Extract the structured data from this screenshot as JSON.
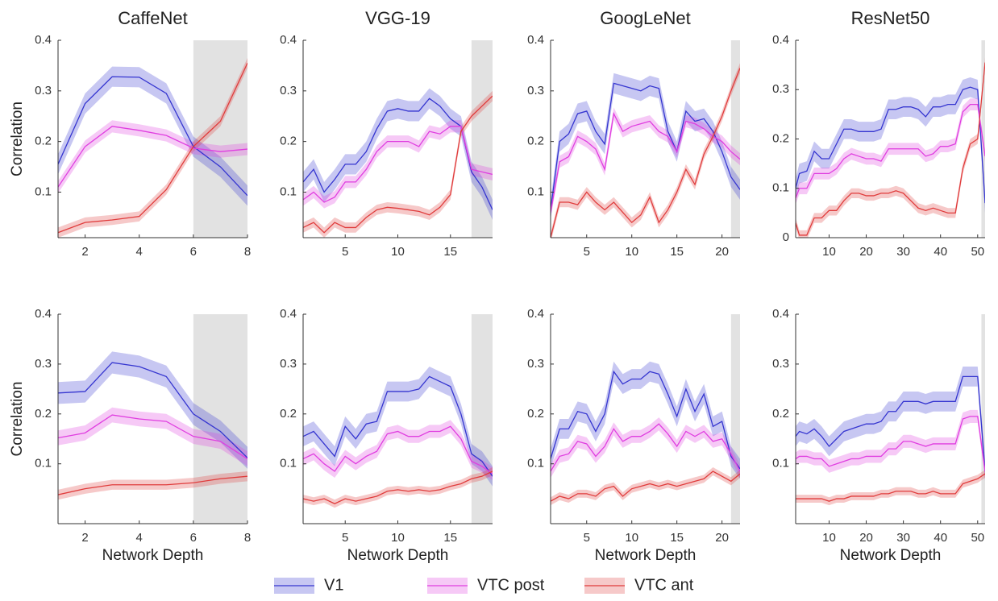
{
  "chart_data": [
    {
      "type": "line",
      "title": "CaffeNet",
      "ylabel": "Correlation",
      "x": [
        1,
        2,
        3,
        4,
        5,
        6,
        7,
        8
      ],
      "xlim": [
        1,
        8
      ],
      "xticks": [
        2,
        4,
        6,
        8
      ],
      "ylim": [
        0.01,
        0.4
      ],
      "yticks": [
        0.1,
        0.2,
        0.3,
        0.4
      ],
      "shade": [
        6,
        8
      ],
      "series": [
        {
          "name": "V1",
          "color": "#3535d0",
          "error": 0.02,
          "values": [
            0.155,
            0.275,
            0.328,
            0.327,
            0.295,
            0.19,
            0.15,
            0.093
          ]
        },
        {
          "name": "VTC post",
          "color": "#e03ee0",
          "error": 0.012,
          "values": [
            0.11,
            0.19,
            0.23,
            0.222,
            0.212,
            0.187,
            0.18,
            0.185
          ]
        },
        {
          "name": "VTC ant",
          "color": "#e03c3c",
          "error": 0.01,
          "values": [
            0.02,
            0.04,
            0.045,
            0.052,
            0.105,
            0.19,
            0.24,
            0.355
          ]
        }
      ]
    },
    {
      "type": "line",
      "title": "VGG-19",
      "x": [
        1,
        2,
        3,
        4,
        5,
        6,
        7,
        8,
        9,
        10,
        11,
        12,
        13,
        14,
        15,
        16,
        17,
        18,
        19
      ],
      "xlim": [
        1,
        19
      ],
      "xticks": [
        5,
        10,
        15
      ],
      "ylim": [
        0.01,
        0.4
      ],
      "yticks": [
        0.1,
        0.2,
        0.3,
        0.4
      ],
      "shade": [
        17,
        19
      ],
      "series": [
        {
          "color": "#3535d0",
          "error": 0.02,
          "values": [
            0.12,
            0.145,
            0.1,
            0.125,
            0.155,
            0.155,
            0.18,
            0.225,
            0.26,
            0.265,
            0.26,
            0.26,
            0.285,
            0.27,
            0.245,
            0.23,
            0.14,
            0.11,
            0.065
          ]
        },
        {
          "color": "#e03ee0",
          "error": 0.012,
          "values": [
            0.085,
            0.1,
            0.08,
            0.09,
            0.12,
            0.12,
            0.145,
            0.18,
            0.2,
            0.2,
            0.2,
            0.19,
            0.22,
            0.215,
            0.23,
            0.23,
            0.145,
            0.14,
            0.135
          ]
        },
        {
          "color": "#e03c3c",
          "error": 0.01,
          "values": [
            0.03,
            0.04,
            0.02,
            0.04,
            0.03,
            0.03,
            0.05,
            0.065,
            0.07,
            0.068,
            0.065,
            0.062,
            0.055,
            0.07,
            0.095,
            0.22,
            0.25,
            0.27,
            0.29
          ]
        }
      ]
    },
    {
      "type": "line",
      "title": "GoogLeNet",
      "x": [
        1,
        2,
        3,
        4,
        5,
        6,
        7,
        8,
        9,
        10,
        11,
        12,
        13,
        14,
        15,
        16,
        17,
        18,
        19,
        20,
        21,
        22
      ],
      "xlim": [
        1,
        22
      ],
      "xticks": [
        5,
        10,
        15,
        20
      ],
      "ylim": [
        0.01,
        0.4
      ],
      "yticks": [
        0.1,
        0.2,
        0.3,
        0.4
      ],
      "shade": [
        21,
        22
      ],
      "series": [
        {
          "color": "#3535d0",
          "error": 0.02,
          "values": [
            0.065,
            0.2,
            0.215,
            0.255,
            0.26,
            0.22,
            0.195,
            0.315,
            0.31,
            0.305,
            0.3,
            0.31,
            0.305,
            0.22,
            0.18,
            0.26,
            0.24,
            0.245,
            0.22,
            0.18,
            0.13,
            0.105
          ]
        },
        {
          "color": "#e03ee0",
          "error": 0.012,
          "values": [
            0.06,
            0.16,
            0.17,
            0.21,
            0.2,
            0.185,
            0.145,
            0.255,
            0.22,
            0.23,
            0.235,
            0.24,
            0.22,
            0.21,
            0.18,
            0.24,
            0.235,
            0.225,
            0.21,
            0.2,
            0.18,
            0.165
          ]
        },
        {
          "color": "#e03c3c",
          "error": 0.01,
          "values": [
            0.01,
            0.08,
            0.08,
            0.075,
            0.1,
            0.08,
            0.065,
            0.08,
            0.06,
            0.04,
            0.055,
            0.09,
            0.04,
            0.065,
            0.1,
            0.145,
            0.115,
            0.175,
            0.21,
            0.25,
            0.3,
            0.345
          ]
        }
      ]
    },
    {
      "type": "line",
      "title": "ResNet50",
      "x": [
        1,
        2,
        4,
        6,
        8,
        10,
        12,
        14,
        16,
        18,
        20,
        22,
        24,
        26,
        28,
        30,
        32,
        34,
        36,
        38,
        40,
        42,
        44,
        46,
        48,
        50,
        52
      ],
      "xlim": [
        1,
        52
      ],
      "xticks": [
        10,
        20,
        30,
        40,
        50
      ],
      "ylim": [
        0,
        0.4
      ],
      "yticks": [
        0,
        0.1,
        0.2,
        0.3,
        0.4
      ],
      "shade": [
        51,
        52
      ],
      "series": [
        {
          "color": "#3535d0",
          "error": 0.02,
          "values": [
            0.1,
            0.13,
            0.135,
            0.175,
            0.16,
            0.16,
            0.19,
            0.22,
            0.22,
            0.215,
            0.215,
            0.215,
            0.22,
            0.26,
            0.26,
            0.265,
            0.265,
            0.26,
            0.245,
            0.265,
            0.265,
            0.27,
            0.27,
            0.3,
            0.305,
            0.3,
            0.07
          ]
        },
        {
          "color": "#e03ee0",
          "error": 0.012,
          "values": [
            0.08,
            0.1,
            0.1,
            0.13,
            0.13,
            0.13,
            0.14,
            0.16,
            0.17,
            0.165,
            0.16,
            0.16,
            0.155,
            0.18,
            0.18,
            0.18,
            0.18,
            0.18,
            0.165,
            0.17,
            0.185,
            0.185,
            0.19,
            0.255,
            0.27,
            0.27,
            0.165
          ]
        },
        {
          "color": "#e03c3c",
          "error": 0.01,
          "values": [
            0.03,
            0.005,
            0.005,
            0.04,
            0.04,
            0.055,
            0.055,
            0.075,
            0.09,
            0.09,
            0.085,
            0.085,
            0.09,
            0.09,
            0.095,
            0.09,
            0.075,
            0.06,
            0.055,
            0.06,
            0.055,
            0.05,
            0.05,
            0.14,
            0.19,
            0.2,
            0.355
          ]
        }
      ]
    },
    {
      "type": "line",
      "ylabel": "Correlation",
      "xlabel": "Network Depth",
      "x": [
        1,
        2,
        3,
        4,
        5,
        6,
        7,
        8
      ],
      "xlim": [
        1,
        8
      ],
      "xticks": [
        2,
        4,
        6,
        8
      ],
      "ylim": [
        -0.02,
        0.4
      ],
      "yticks": [
        0.1,
        0.2,
        0.3,
        0.4
      ],
      "shade": [
        6,
        8
      ],
      "series": [
        {
          "color": "#3535d0",
          "error": 0.022,
          "values": [
            0.242,
            0.245,
            0.303,
            0.295,
            0.275,
            0.2,
            0.165,
            0.112
          ]
        },
        {
          "color": "#e03ee0",
          "error": 0.015,
          "values": [
            0.152,
            0.162,
            0.198,
            0.19,
            0.185,
            0.155,
            0.145,
            0.11
          ]
        },
        {
          "color": "#e03c3c",
          "error": 0.01,
          "values": [
            0.038,
            0.05,
            0.058,
            0.058,
            0.058,
            0.062,
            0.07,
            0.075
          ]
        }
      ]
    },
    {
      "type": "line",
      "xlabel": "Network Depth",
      "x": [
        1,
        2,
        3,
        4,
        5,
        6,
        7,
        8,
        9,
        10,
        11,
        12,
        13,
        14,
        15,
        16,
        17,
        18,
        19
      ],
      "xlim": [
        1,
        19
      ],
      "xticks": [
        5,
        10,
        15
      ],
      "ylim": [
        -0.02,
        0.4
      ],
      "yticks": [
        0.1,
        0.2,
        0.3,
        0.4
      ],
      "shade": [
        17,
        19
      ],
      "series": [
        {
          "color": "#3535d0",
          "error": 0.02,
          "values": [
            0.155,
            0.165,
            0.14,
            0.115,
            0.175,
            0.15,
            0.18,
            0.185,
            0.245,
            0.245,
            0.245,
            0.25,
            0.275,
            0.265,
            0.255,
            0.2,
            0.12,
            0.105,
            0.075
          ]
        },
        {
          "color": "#e03ee0",
          "error": 0.013,
          "values": [
            0.11,
            0.12,
            0.1,
            0.085,
            0.115,
            0.1,
            0.115,
            0.125,
            0.16,
            0.165,
            0.155,
            0.155,
            0.165,
            0.165,
            0.175,
            0.15,
            0.105,
            0.095,
            0.08
          ]
        },
        {
          "color": "#e03c3c",
          "error": 0.008,
          "values": [
            0.03,
            0.025,
            0.03,
            0.02,
            0.03,
            0.025,
            0.03,
            0.035,
            0.045,
            0.048,
            0.045,
            0.048,
            0.045,
            0.048,
            0.055,
            0.06,
            0.07,
            0.075,
            0.085
          ]
        }
      ]
    },
    {
      "type": "line",
      "xlabel": "Network Depth",
      "x": [
        1,
        2,
        3,
        4,
        5,
        6,
        7,
        8,
        9,
        10,
        11,
        12,
        13,
        14,
        15,
        16,
        17,
        18,
        19,
        20,
        21,
        22
      ],
      "xlim": [
        1,
        22
      ],
      "xticks": [
        5,
        10,
        15,
        20
      ],
      "ylim": [
        -0.02,
        0.4
      ],
      "yticks": [
        0.1,
        0.2,
        0.3,
        0.4
      ],
      "shade": [
        21,
        22
      ],
      "series": [
        {
          "color": "#3535d0",
          "error": 0.02,
          "values": [
            0.11,
            0.17,
            0.17,
            0.205,
            0.2,
            0.165,
            0.2,
            0.285,
            0.26,
            0.27,
            0.27,
            0.285,
            0.28,
            0.24,
            0.195,
            0.25,
            0.205,
            0.24,
            0.175,
            0.185,
            0.115,
            0.09
          ]
        },
        {
          "color": "#e03ee0",
          "error": 0.013,
          "values": [
            0.085,
            0.115,
            0.12,
            0.145,
            0.14,
            0.115,
            0.135,
            0.17,
            0.145,
            0.155,
            0.155,
            0.165,
            0.18,
            0.16,
            0.135,
            0.165,
            0.155,
            0.165,
            0.145,
            0.15,
            0.12,
            0.085
          ]
        },
        {
          "color": "#e03c3c",
          "error": 0.008,
          "values": [
            0.025,
            0.035,
            0.03,
            0.04,
            0.04,
            0.035,
            0.05,
            0.055,
            0.035,
            0.05,
            0.055,
            0.06,
            0.055,
            0.06,
            0.055,
            0.06,
            0.065,
            0.07,
            0.085,
            0.075,
            0.065,
            0.08
          ]
        }
      ]
    },
    {
      "type": "line",
      "xlabel": "Network Depth",
      "x": [
        1,
        2,
        4,
        6,
        8,
        10,
        12,
        14,
        16,
        18,
        20,
        22,
        24,
        26,
        28,
        30,
        32,
        34,
        36,
        38,
        40,
        42,
        44,
        46,
        48,
        50,
        52
      ],
      "xlim": [
        1,
        52
      ],
      "xticks": [
        10,
        20,
        30,
        40,
        50
      ],
      "ylim": [
        -0.02,
        0.4
      ],
      "yticks": [
        0.1,
        0.2,
        0.3,
        0.4
      ],
      "shade": [
        51,
        52
      ],
      "series": [
        {
          "color": "#3535d0",
          "error": 0.02,
          "values": [
            0.155,
            0.165,
            0.16,
            0.17,
            0.155,
            0.135,
            0.15,
            0.165,
            0.17,
            0.175,
            0.18,
            0.18,
            0.185,
            0.205,
            0.205,
            0.225,
            0.225,
            0.225,
            0.22,
            0.225,
            0.225,
            0.225,
            0.225,
            0.275,
            0.275,
            0.275,
            0.085
          ]
        },
        {
          "color": "#e03ee0",
          "error": 0.013,
          "values": [
            0.11,
            0.115,
            0.115,
            0.11,
            0.11,
            0.095,
            0.1,
            0.105,
            0.11,
            0.11,
            0.115,
            0.115,
            0.115,
            0.13,
            0.13,
            0.145,
            0.145,
            0.14,
            0.135,
            0.14,
            0.14,
            0.14,
            0.14,
            0.19,
            0.195,
            0.195,
            0.085
          ]
        },
        {
          "color": "#e03c3c",
          "error": 0.008,
          "values": [
            0.03,
            0.03,
            0.03,
            0.03,
            0.03,
            0.025,
            0.03,
            0.03,
            0.035,
            0.035,
            0.035,
            0.035,
            0.04,
            0.04,
            0.045,
            0.045,
            0.045,
            0.04,
            0.04,
            0.045,
            0.04,
            0.04,
            0.04,
            0.06,
            0.065,
            0.07,
            0.08
          ]
        }
      ]
    }
  ]
}
